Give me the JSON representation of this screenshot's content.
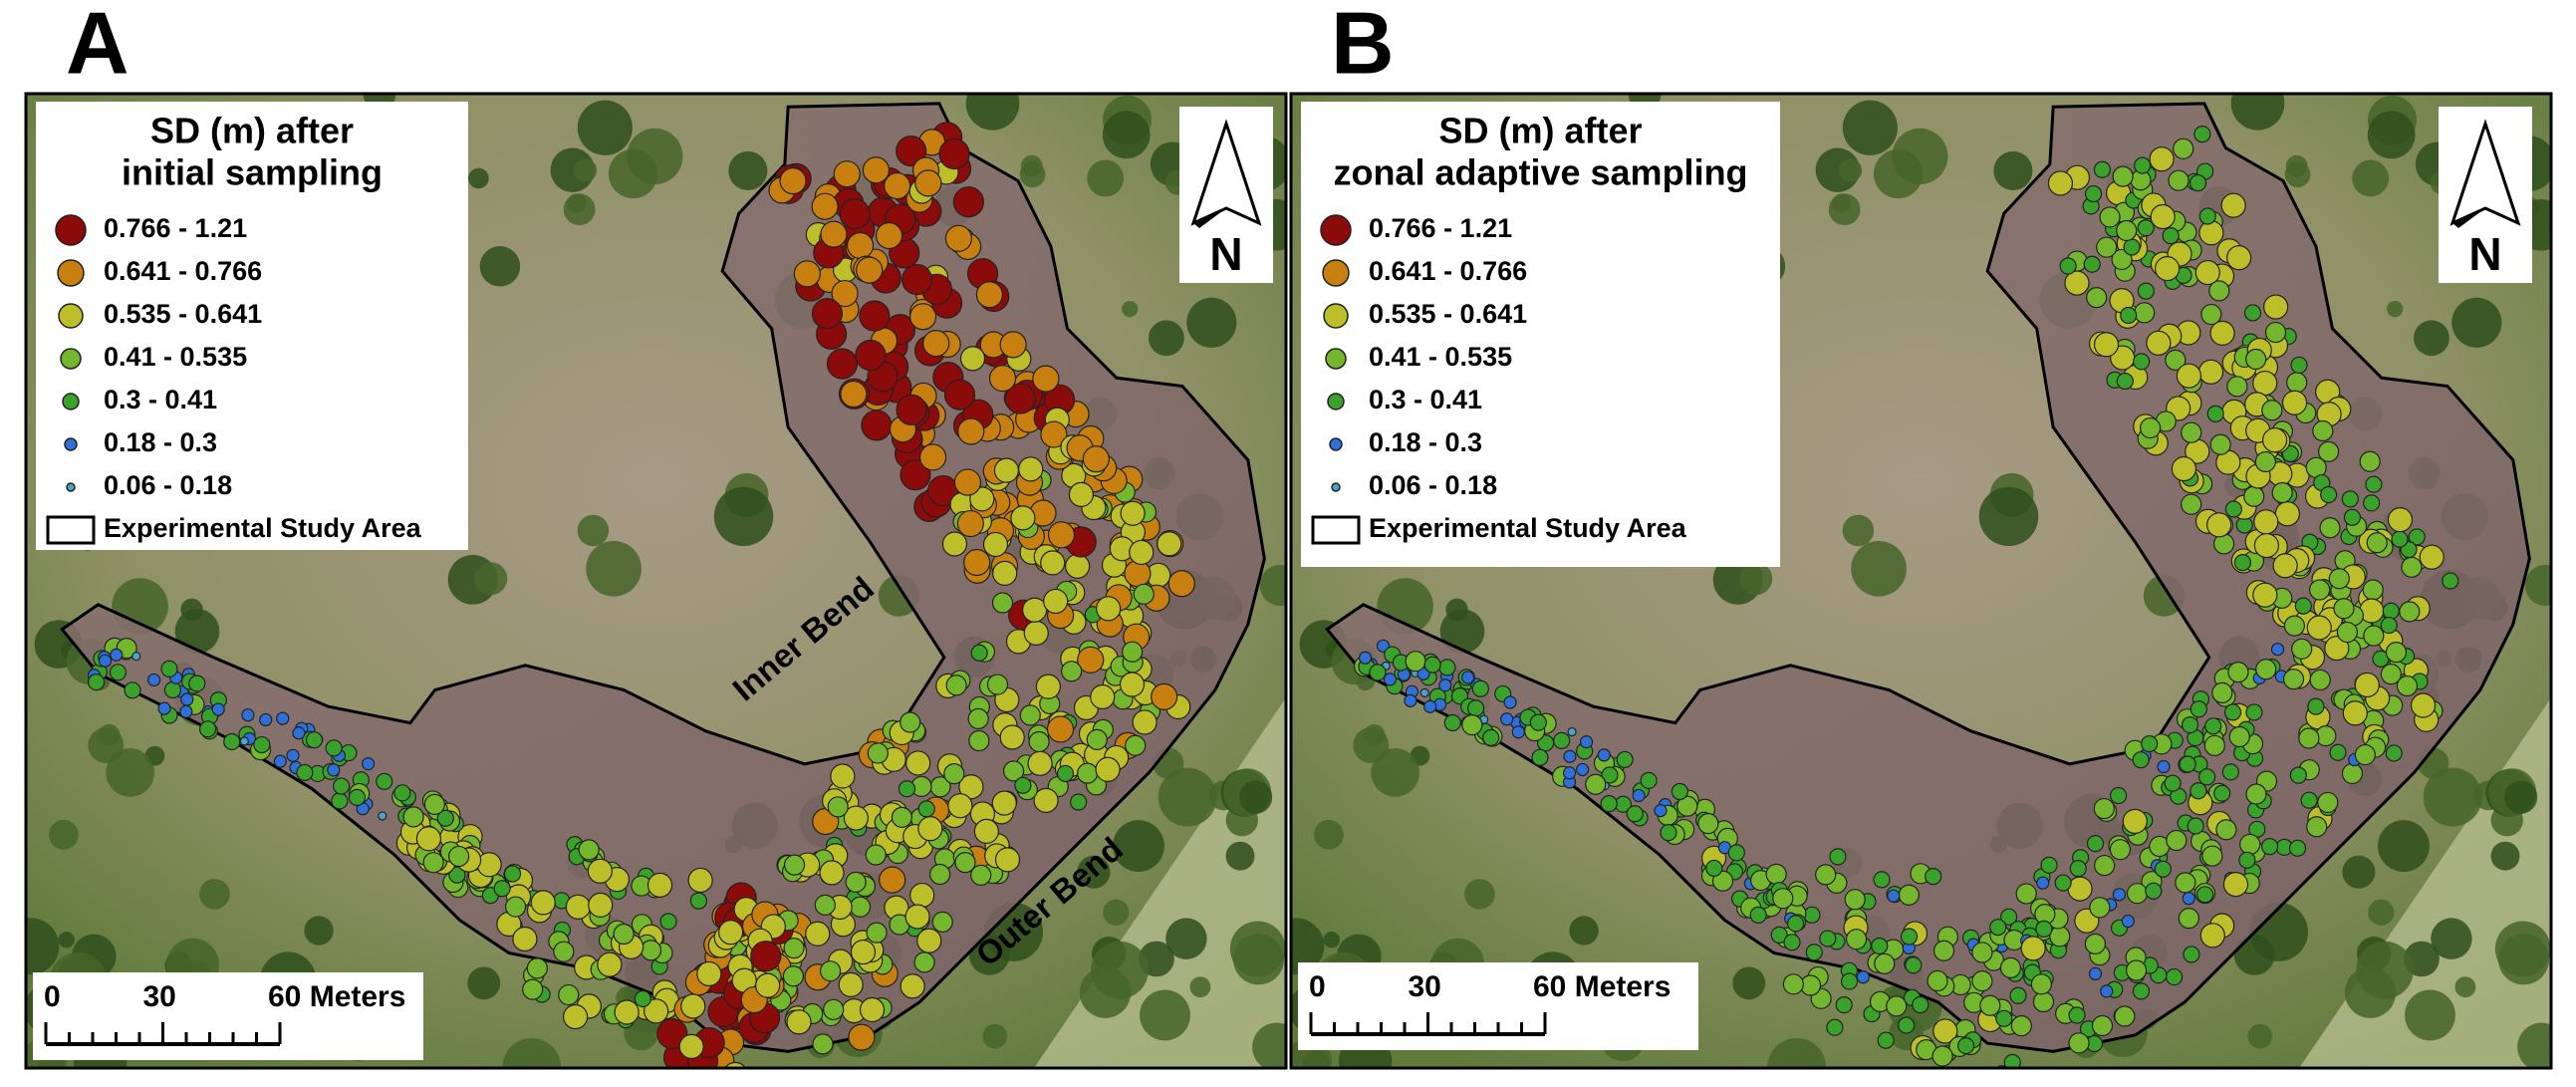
{
  "panels": [
    {
      "label": "A",
      "legend": {
        "title": [
          "SD (m) after",
          "initial sampling"
        ],
        "classes": [
          {
            "label": "0.766 - 1.21",
            "color": "#8b0a0a"
          },
          {
            "label": "0.641 - 0.766",
            "color": "#c77f0f"
          },
          {
            "label": "0.535 - 0.641",
            "color": "#bdbf2a"
          },
          {
            "label": "0.41 - 0.535",
            "color": "#74b62d"
          },
          {
            "label": "0.3 - 0.41",
            "color": "#3aa12a"
          },
          {
            "label": "0.18 - 0.3",
            "color": "#2f6fd8"
          },
          {
            "label": "0.06 - 0.18",
            "color": "#4aa3c8"
          }
        ],
        "boundary": "Experimental Study Area"
      },
      "annotations": [
        "Inner Bend",
        "Outer Bend"
      ],
      "north": "N",
      "scale": {
        "ticks": [
          "0",
          "30",
          "60 Meters"
        ]
      }
    },
    {
      "label": "B",
      "legend": {
        "title": [
          "SD (m) after",
          "zonal adaptive sampling"
        ],
        "classes": [
          {
            "label": "0.766 - 1.21",
            "color": "#8b0a0a"
          },
          {
            "label": "0.641 - 0.766",
            "color": "#c77f0f"
          },
          {
            "label": "0.535 - 0.641",
            "color": "#bdbf2a"
          },
          {
            "label": "0.41 - 0.535",
            "color": "#74b62d"
          },
          {
            "label": "0.3 - 0.41",
            "color": "#3aa12a"
          },
          {
            "label": "0.18 - 0.3",
            "color": "#2f6fd8"
          },
          {
            "label": "0.06 - 0.18",
            "color": "#4aa3c8"
          }
        ],
        "boundary": "Experimental Study Area"
      },
      "north": "N",
      "scale": {
        "ticks": [
          "0",
          "30",
          "60 Meters"
        ]
      }
    }
  ]
}
